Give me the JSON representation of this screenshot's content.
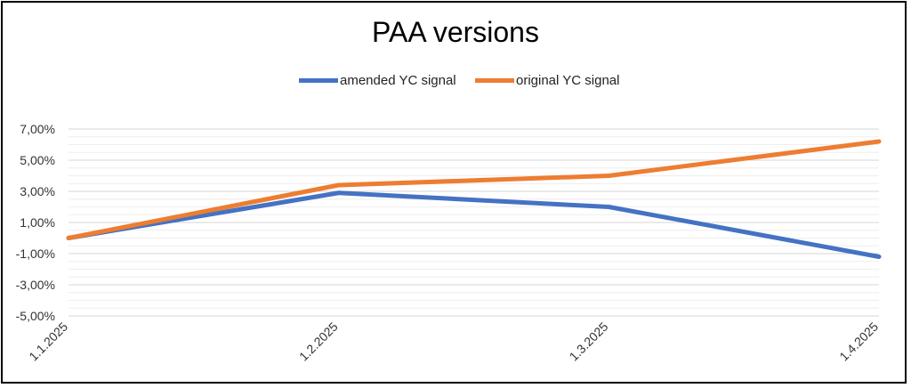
{
  "chart_data": {
    "type": "line",
    "title": "PAA versions",
    "xlabel": "",
    "ylabel": "",
    "categories": [
      "1.1.2025",
      "1.2.2025",
      "1.3.2025",
      "1.4.2025"
    ],
    "ylim": [
      -5,
      7
    ],
    "yticks": [
      "7,00%",
      "5,00%",
      "3,00%",
      "1,00%",
      "-1,00%",
      "-3,00%",
      "-5,00%"
    ],
    "ytick_values": [
      7,
      5,
      3,
      1,
      -1,
      -3,
      -5
    ],
    "grid": true,
    "legend_position": "top",
    "series": [
      {
        "name": "amended YC signal",
        "color": "#4472C4",
        "values": [
          0.0,
          2.9,
          2.0,
          -1.2
        ]
      },
      {
        "name": "original YC signal",
        "color": "#ED7D31",
        "values": [
          0.0,
          3.4,
          4.0,
          6.2
        ]
      }
    ]
  }
}
